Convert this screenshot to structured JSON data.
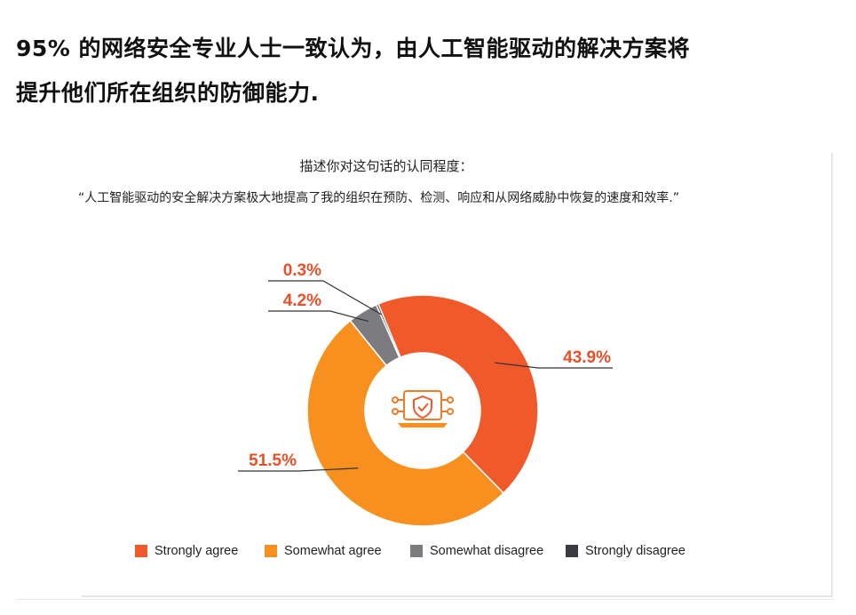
{
  "headline": {
    "line1": "95% 的网络安全专业人士一致认为，由人工智能驱动的解决方案将",
    "line2": "提升他们所在组织的防御能力."
  },
  "question": {
    "title": "描述你对这句话的认同程度：",
    "text": "“人工智能驱动的安全解决方案极大地提高了我的组织在预防、检测、响应和从网络威胁中恢复的速度和效率.”"
  },
  "chart_data": {
    "type": "pie",
    "style": "donut",
    "categories": [
      "Strongly agree",
      "Somewhat agree",
      "Somewhat disagree",
      "Strongly disagree"
    ],
    "values": [
      43.9,
      51.5,
      4.2,
      0.3
    ],
    "data_labels": [
      "43.9%",
      "51.5%",
      "4.2%",
      "0.3%"
    ],
    "colors": [
      "#f05a2b",
      "#f7901e",
      "#7b7b80",
      "#3a3a44"
    ],
    "label_color": "#e8502a",
    "center_icon": "shield-laptop-circuit-icon",
    "legend_position": "bottom"
  }
}
